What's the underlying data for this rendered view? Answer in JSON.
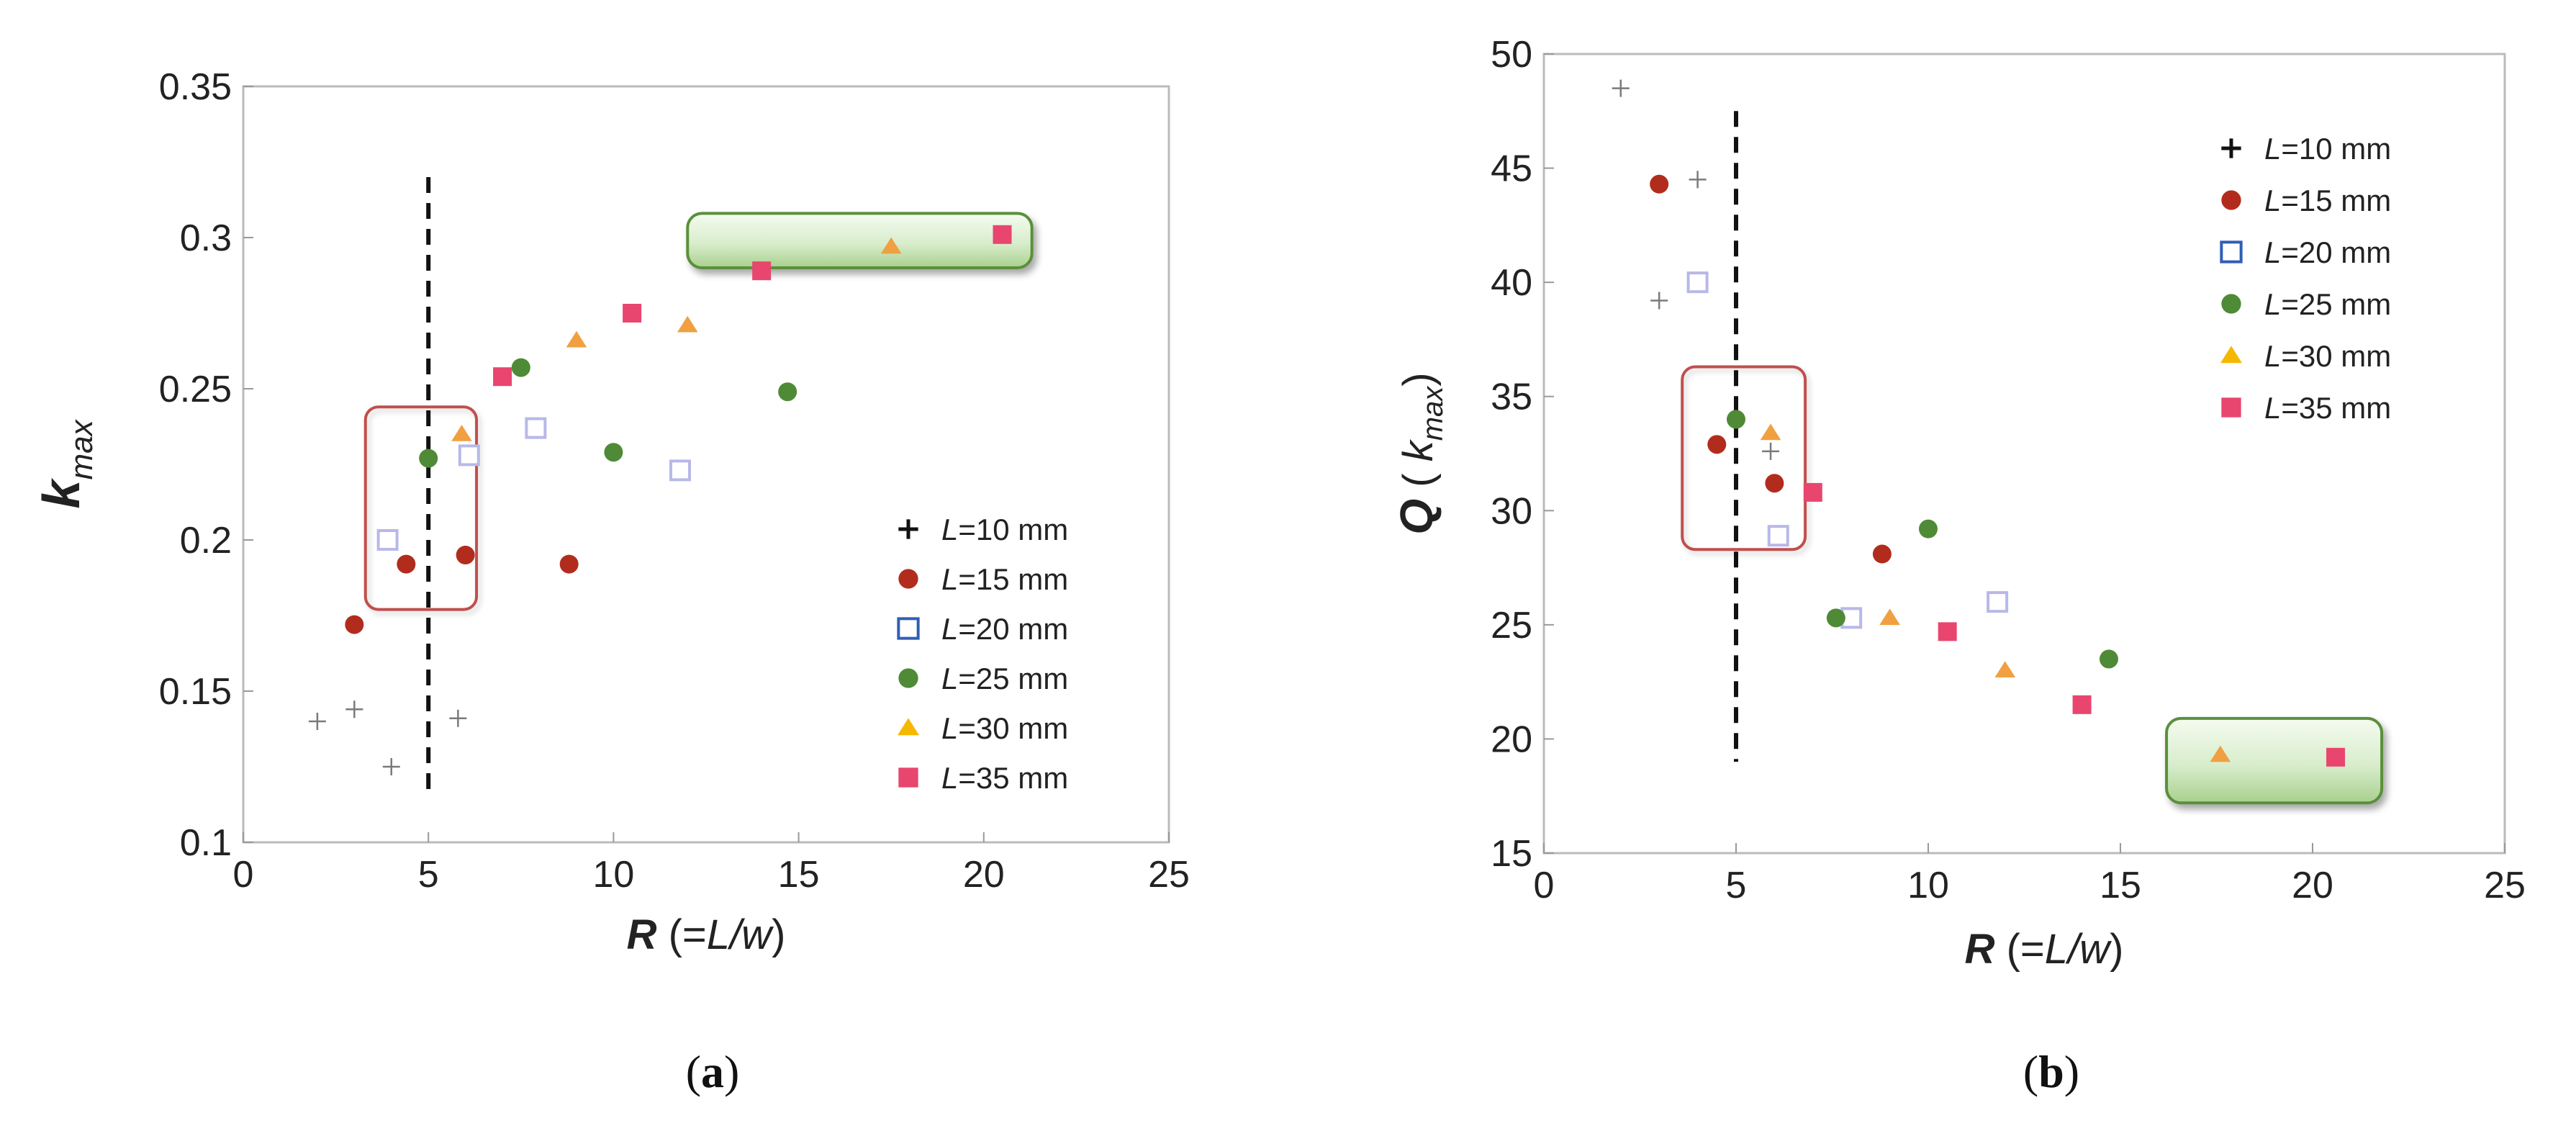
{
  "chart_data": [
    {
      "type": "scatter",
      "panel": "a",
      "caption": {
        "open": "(",
        "letter": "a",
        "close": ")"
      },
      "xlabel": {
        "var": "R",
        "rest": " (=",
        "ital": "L/w",
        "end": ")"
      },
      "ylabel": {
        "var": "k",
        "sub": "max"
      },
      "xlim": [
        0,
        25
      ],
      "ylim": [
        0.1,
        0.35
      ],
      "xticks": [
        0,
        5,
        10,
        15,
        20,
        25
      ],
      "xtick_labels": [
        "0",
        "5",
        "10",
        "15",
        "20",
        "25"
      ],
      "yticks": [
        0.1,
        0.15,
        0.2,
        0.25,
        0.3,
        0.35
      ],
      "ytick_labels": [
        "0.1",
        "0.15",
        "0.2",
        "0.25",
        "0.3",
        "0.35"
      ],
      "vline_x": 5,
      "vline_range": [
        0.115,
        0.32
      ],
      "highlight_boxes": [
        {
          "color": "red",
          "x": [
            3.3,
            6.3
          ],
          "y": [
            0.177,
            0.244
          ]
        },
        {
          "color": "green",
          "x": [
            12.0,
            21.3
          ],
          "y": [
            0.29,
            0.308
          ]
        }
      ],
      "legend_position": "bottom-right",
      "series": [
        {
          "name": "L=10 mm",
          "label_var": "L",
          "label_rest": "=10 mm",
          "marker": "plus",
          "points": [
            [
              2,
              0.14
            ],
            [
              3,
              0.144
            ],
            [
              4,
              0.125
            ],
            [
              5.8,
              0.141
            ]
          ]
        },
        {
          "name": "L=15 mm",
          "label_var": "L",
          "label_rest": "=15 mm",
          "marker": "circle",
          "points": [
            [
              3,
              0.172
            ],
            [
              4.4,
              0.192
            ],
            [
              6,
              0.195
            ],
            [
              8.8,
              0.192
            ]
          ]
        },
        {
          "name": "L=20 mm",
          "label_var": "L",
          "label_rest": "=20 mm",
          "marker": "square-open",
          "points": [
            [
              3.9,
              0.2
            ],
            [
              6.1,
              0.228
            ],
            [
              7.9,
              0.237
            ],
            [
              11.8,
              0.223
            ]
          ]
        },
        {
          "name": "L=25 mm",
          "label_var": "L",
          "label_rest": "=25 mm",
          "marker": "circle",
          "points": [
            [
              5,
              0.227
            ],
            [
              7.5,
              0.257
            ],
            [
              10,
              0.229
            ],
            [
              14.7,
              0.249
            ]
          ]
        },
        {
          "name": "L=30 mm",
          "label_var": "L",
          "label_rest": "=30 mm",
          "marker": "triangle",
          "points": [
            [
              5.9,
              0.235
            ],
            [
              9,
              0.266
            ],
            [
              12,
              0.271
            ],
            [
              17.5,
              0.297
            ]
          ]
        },
        {
          "name": "L=35 mm",
          "label_var": "L",
          "label_rest": "=35 mm",
          "marker": "square",
          "points": [
            [
              7,
              0.254
            ],
            [
              10.5,
              0.275
            ],
            [
              14,
              0.289
            ],
            [
              20.5,
              0.301
            ]
          ]
        }
      ]
    },
    {
      "type": "scatter",
      "panel": "b",
      "caption": {
        "open": "(",
        "letter": "b",
        "close": ")"
      },
      "xlabel": {
        "var": "R",
        "rest": " (=",
        "ital": "L/w",
        "end": ")"
      },
      "ylabel": {
        "var": "Q",
        "open": " ( ",
        "k": "k",
        "sub": "max",
        "close": ")"
      },
      "xlim": [
        0,
        25
      ],
      "ylim": [
        15,
        50
      ],
      "xticks": [
        0,
        5,
        10,
        15,
        20,
        25
      ],
      "xtick_labels": [
        "0",
        "5",
        "10",
        "15",
        "20",
        "25"
      ],
      "yticks": [
        15,
        20,
        25,
        30,
        35,
        40,
        45,
        50
      ],
      "ytick_labels": [
        "15",
        "20",
        "25",
        "30",
        "35",
        "40",
        "45",
        "50"
      ],
      "vline_x": 5,
      "vline_range": [
        19,
        47.5
      ],
      "highlight_boxes": [
        {
          "color": "red",
          "x": [
            3.6,
            6.8
          ],
          "y": [
            28.3,
            36.3
          ]
        },
        {
          "color": "green",
          "x": [
            16.2,
            21.8
          ],
          "y": [
            17.2,
            20.9
          ]
        }
      ],
      "legend_position": "top-right",
      "series": [
        {
          "name": "L=10 mm",
          "label_var": "L",
          "label_rest": "=10 mm",
          "marker": "plus",
          "points": [
            [
              2,
              48.5
            ],
            [
              3,
              39.2
            ],
            [
              4,
              44.5
            ],
            [
              5.9,
              32.6
            ]
          ]
        },
        {
          "name": "L=15 mm",
          "label_var": "L",
          "label_rest": "=15 mm",
          "marker": "circle",
          "points": [
            [
              3,
              44.3
            ],
            [
              4.5,
              32.9
            ],
            [
              6,
              31.2
            ],
            [
              8.8,
              28.1
            ]
          ]
        },
        {
          "name": "L=20 mm",
          "label_var": "L",
          "label_rest": "=20 mm",
          "marker": "square-open",
          "points": [
            [
              4,
              40
            ],
            [
              6.1,
              28.9
            ],
            [
              8,
              25.3
            ],
            [
              11.8,
              26
            ]
          ]
        },
        {
          "name": "L=25 mm",
          "label_var": "L",
          "label_rest": "=25 mm",
          "marker": "circle",
          "points": [
            [
              5,
              34
            ],
            [
              7.6,
              25.3
            ],
            [
              10,
              29.2
            ],
            [
              14.7,
              23.5
            ]
          ]
        },
        {
          "name": "L=30 mm",
          "label_var": "L",
          "label_rest": "=30 mm",
          "marker": "triangle",
          "points": [
            [
              5.9,
              33.4
            ],
            [
              9,
              25.3
            ],
            [
              12,
              23
            ],
            [
              17.6,
              19.3
            ]
          ]
        },
        {
          "name": "L=35 mm",
          "label_var": "L",
          "label_rest": "=35 mm",
          "marker": "square",
          "points": [
            [
              7,
              30.8
            ],
            [
              10.5,
              24.7
            ],
            [
              14,
              21.5
            ],
            [
              20.6,
              19.2
            ]
          ]
        }
      ]
    }
  ],
  "colors": {
    "L=10 mm": "#7a7a7a",
    "L=10 mm legend": "#111111",
    "L=15 mm": "#b22c1e",
    "L=20 mm": "#b8b8e8",
    "L=20 mm legend": "#2f5fb5",
    "L=25 mm": "#4f8a36",
    "L=30 mm": "#f0a040",
    "L=30 mm legend": "#f5b800",
    "L=35 mm": "#e8466e",
    "red_box": "#c0504d",
    "green_box": "#5a8f3b",
    "frame": "#bbbbbb",
    "text": "#222222"
  }
}
